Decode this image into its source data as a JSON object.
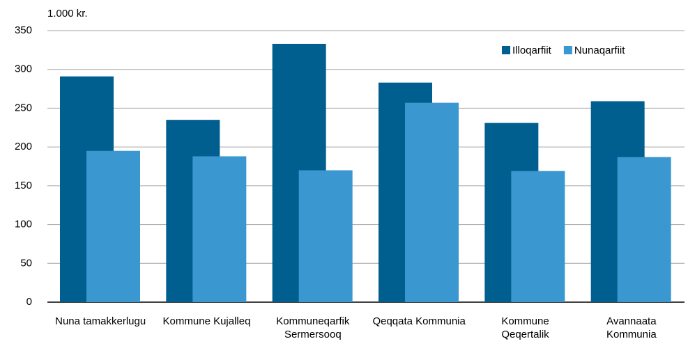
{
  "chart_data": {
    "type": "bar",
    "unit_label": "1.000 kr.",
    "categories": [
      "Nuna tamakkerlugu",
      "Kommune Kujalleq",
      "Kommuneqarfik Sermersooq",
      "Qeqqata Kommunia",
      "Kommune Qeqertalik",
      "Avannaata Kommunia"
    ],
    "series": [
      {
        "name": "Illoqarfiit",
        "color": "#005f8f",
        "values": [
          291,
          235,
          333,
          283,
          231,
          259
        ]
      },
      {
        "name": "Nunaqarfiit",
        "color": "#3a97cf",
        "values": [
          195,
          188,
          170,
          257,
          169,
          187
        ]
      }
    ],
    "ylim": [
      0,
      350
    ],
    "yticks": [
      0,
      50,
      100,
      150,
      200,
      250,
      300,
      350
    ],
    "grid": true,
    "legend": "top-right"
  }
}
